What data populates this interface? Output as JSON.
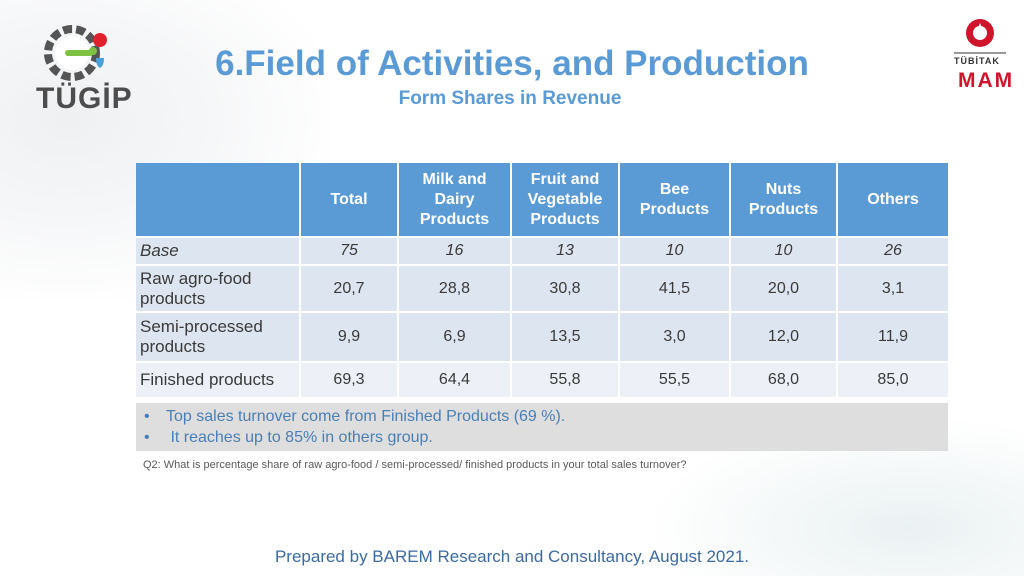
{
  "title": "6.Field of Activities, and Production",
  "subtitle": "Form Shares in Revenue",
  "logos": {
    "left_text": "TÜGİP",
    "right_top_text": "TÜBİTAK",
    "right_text": "MAM"
  },
  "table": {
    "headers": [
      "",
      "Total",
      "Milk and Dairy Products",
      "Fruit and Vegetable Products",
      "Bee Products",
      "Nuts Products",
      "Others"
    ],
    "rows": [
      {
        "label": "Base",
        "values": [
          "75",
          "16",
          "13",
          "10",
          "10",
          "26"
        ]
      },
      {
        "label": "Raw agro-food products",
        "values": [
          "20,7",
          "28,8",
          "30,8",
          "41,5",
          "20,0",
          "3,1"
        ]
      },
      {
        "label": "Semi-processed products",
        "values": [
          "9,9",
          "6,9",
          "13,5",
          "3,0",
          "12,0",
          "11,9"
        ]
      },
      {
        "label": "Finished products",
        "values": [
          "69,3",
          "64,4",
          "55,8",
          "55,5",
          "68,0",
          "85,0"
        ]
      }
    ]
  },
  "notes": [
    "Top sales turnover come from Finished Products (69 %).",
    " It reaches up to 85% in others group."
  ],
  "question": "Q2: What is percentage share of raw agro-food / semi-processed/ finished products in your total sales turnover?",
  "footer": "Prepared by BAREM Research and Consultancy, August 2021.",
  "colors": {
    "accent": "#5b9bd5",
    "row_light": "#dde5f1",
    "row_lighter": "#edf1f7",
    "notes_bg": "#dedede",
    "logo_red": "#d0142c"
  }
}
